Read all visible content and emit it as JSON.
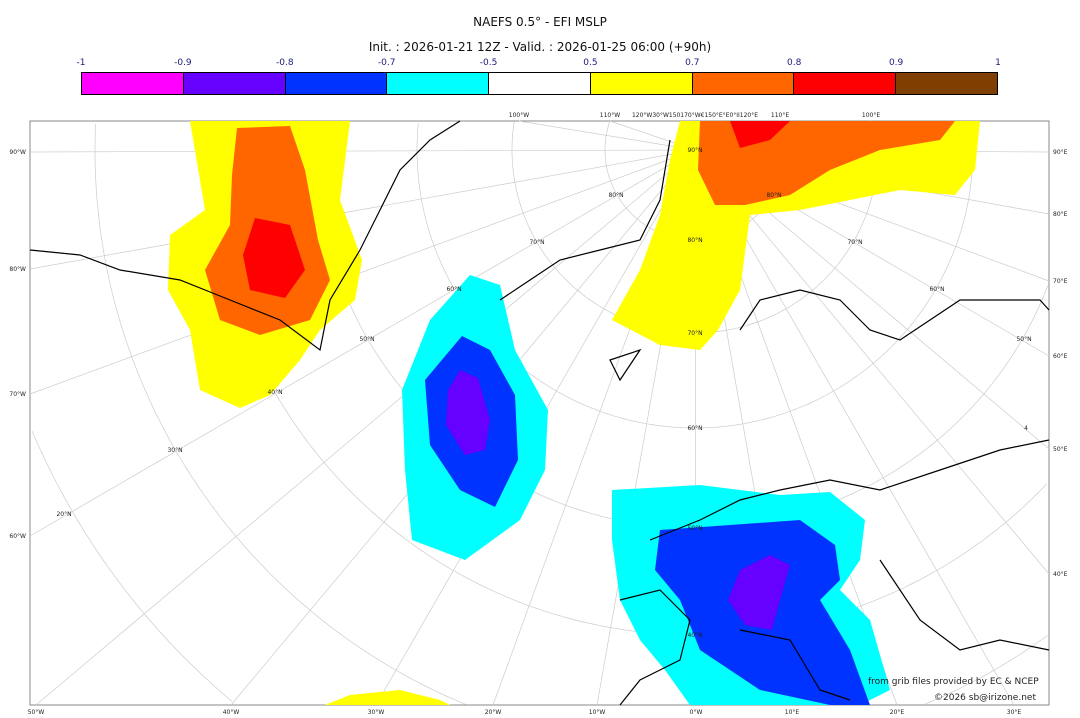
{
  "title": "NAEFS 0.5° - EFI MSLP",
  "subtitle": "Init. : 2026-01-21 12Z - Valid. : 2026-01-25 06:00 (+90h)",
  "colorbar": {
    "ticks": [
      "-1",
      "-0.9",
      "-0.8",
      "-0.7",
      "-0.5",
      "0.5",
      "0.7",
      "0.8",
      "0.9",
      "1"
    ],
    "colors": [
      "#ff00ff",
      "#6600ff",
      "#0033ff",
      "#00ffff",
      "#ffffff",
      "#ffff00",
      "#ff6600",
      "#ff0000",
      "#7f3f00"
    ]
  },
  "map": {
    "left_labels": [
      "90°W",
      "80°W",
      "70°W",
      "60°W"
    ],
    "right_labels": [
      "90°E",
      "80°E",
      "70°E",
      "60°E",
      "50°E",
      "40°E"
    ],
    "bottom_labels": [
      "50°W",
      "40°W",
      "30°W",
      "20°W",
      "10°W",
      "0°W",
      "10°E",
      "20°E",
      "30°E"
    ],
    "top_labels": [
      "100°W",
      "110°W",
      "120°W30°W150170°W€150°E°E0°II120°E",
      "110°E",
      "100°E"
    ],
    "lat_labels_center": [
      "90°N",
      "80°N",
      "70°N",
      "60°N",
      "50°N",
      "40°N"
    ],
    "lat_labels_left": [
      "80°N",
      "70°N",
      "60°N",
      "50°N",
      "40°N",
      "30°N",
      "20°N"
    ],
    "lat_labels_right": [
      "80°N",
      "70°N",
      "60°N",
      "50°N",
      "4"
    ]
  },
  "credits": {
    "source": "from grib files provided by EC & NCEP",
    "copyright": "©2026 sb@irizone.net"
  }
}
